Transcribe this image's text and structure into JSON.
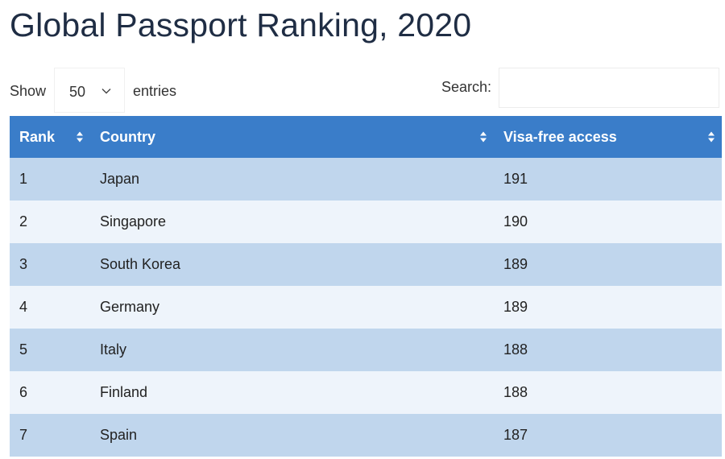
{
  "page": {
    "title": "Global Passport Ranking, 2020"
  },
  "controls": {
    "show_label": "Show",
    "length_value": "50",
    "entries_label": "entries",
    "search_label": "Search:",
    "search_value": "",
    "search_placeholder": ""
  },
  "table": {
    "headers": {
      "rank": "Rank",
      "country": "Country",
      "visa": "Visa-free access"
    },
    "rows": [
      {
        "rank": "1",
        "country": "Japan",
        "visa": "191"
      },
      {
        "rank": "2",
        "country": "Singapore",
        "visa": "190"
      },
      {
        "rank": "3",
        "country": "South Korea",
        "visa": "189"
      },
      {
        "rank": "4",
        "country": "Germany",
        "visa": "189"
      },
      {
        "rank": "5",
        "country": "Italy",
        "visa": "188"
      },
      {
        "rank": "6",
        "country": "Finland",
        "visa": "188"
      },
      {
        "rank": "7",
        "country": "Spain",
        "visa": "187"
      }
    ]
  },
  "icons": {
    "length_dropdown": "chevron-down-icon",
    "sort": "sort-icon"
  },
  "colors": {
    "header_bg": "#3a7dc9",
    "row_odd": "#c0d6ed",
    "row_even": "#eef4fb",
    "title": "#1f2d44"
  }
}
